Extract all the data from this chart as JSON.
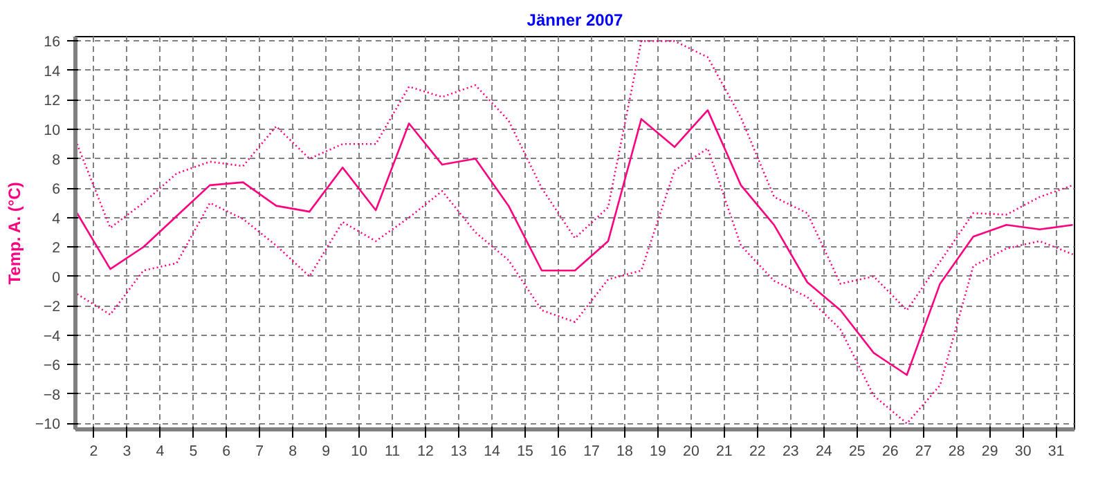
{
  "chart_data": {
    "type": "line",
    "title": "Jänner 2007",
    "ylabel": "Temp. A. (°C)",
    "x": [
      1.5,
      2.5,
      3.5,
      4.5,
      5.5,
      6.5,
      7.5,
      8.5,
      9.5,
      10.5,
      11.5,
      12.5,
      13.5,
      14.5,
      15.5,
      16.5,
      17.5,
      18.5,
      19.5,
      20.5,
      21.5,
      22.5,
      23.5,
      24.5,
      25.5,
      26.5,
      27.5,
      28.5,
      29.5,
      30.5,
      31.5
    ],
    "xlim": [
      1.45,
      31.55
    ],
    "xticks": [
      2,
      3,
      4,
      5,
      6,
      7,
      8,
      9,
      10,
      11,
      12,
      13,
      14,
      15,
      16,
      17,
      18,
      19,
      20,
      21,
      22,
      23,
      24,
      25,
      26,
      27,
      28,
      29,
      30,
      31
    ],
    "ylim": [
      -10.4,
      16.3
    ],
    "yticks": [
      -10,
      -8,
      -6,
      -4,
      -2,
      0,
      2,
      4,
      6,
      8,
      10,
      12,
      14,
      16
    ],
    "grid": true,
    "marker": "none",
    "series": [
      {
        "color": "#ff0080",
        "line_style": "solid",
        "values": [
          4.3,
          0.5,
          2.0,
          4.1,
          6.2,
          6.4,
          4.8,
          4.4,
          7.4,
          4.5,
          10.4,
          7.6,
          8.0,
          4.8,
          0.4,
          0.4,
          2.4,
          10.7,
          8.8,
          11.3,
          6.2,
          3.5,
          -0.4,
          -2.3,
          -5.2,
          -6.7,
          -0.5,
          2.7,
          3.5,
          3.2,
          3.5
        ]
      },
      {
        "color": "#ff0080",
        "line_style": "dotted",
        "values": [
          9.0,
          3.3,
          5.0,
          7.0,
          7.8,
          7.5,
          10.2,
          8.0,
          9.0,
          9.0,
          12.9,
          12.2,
          13.0,
          10.6,
          6.0,
          2.6,
          4.7,
          16.0,
          16.0,
          14.9,
          10.8,
          5.4,
          4.3,
          -0.5,
          0.0,
          -2.3,
          1.0,
          4.3,
          4.2,
          5.4,
          6.2
        ]
      },
      {
        "color": "#ff0080",
        "line_style": "dotted",
        "values": [
          -1.2,
          -2.6,
          0.4,
          0.9,
          5.0,
          3.9,
          2.1,
          0.0,
          3.7,
          2.4,
          4.0,
          5.8,
          3.0,
          1.1,
          -2.3,
          -3.1,
          -0.2,
          0.4,
          7.2,
          8.7,
          2.1,
          -0.3,
          -1.4,
          -3.6,
          -8.1,
          -10.0,
          -7.4,
          0.7,
          1.9,
          2.4,
          1.5
        ]
      }
    ]
  }
}
